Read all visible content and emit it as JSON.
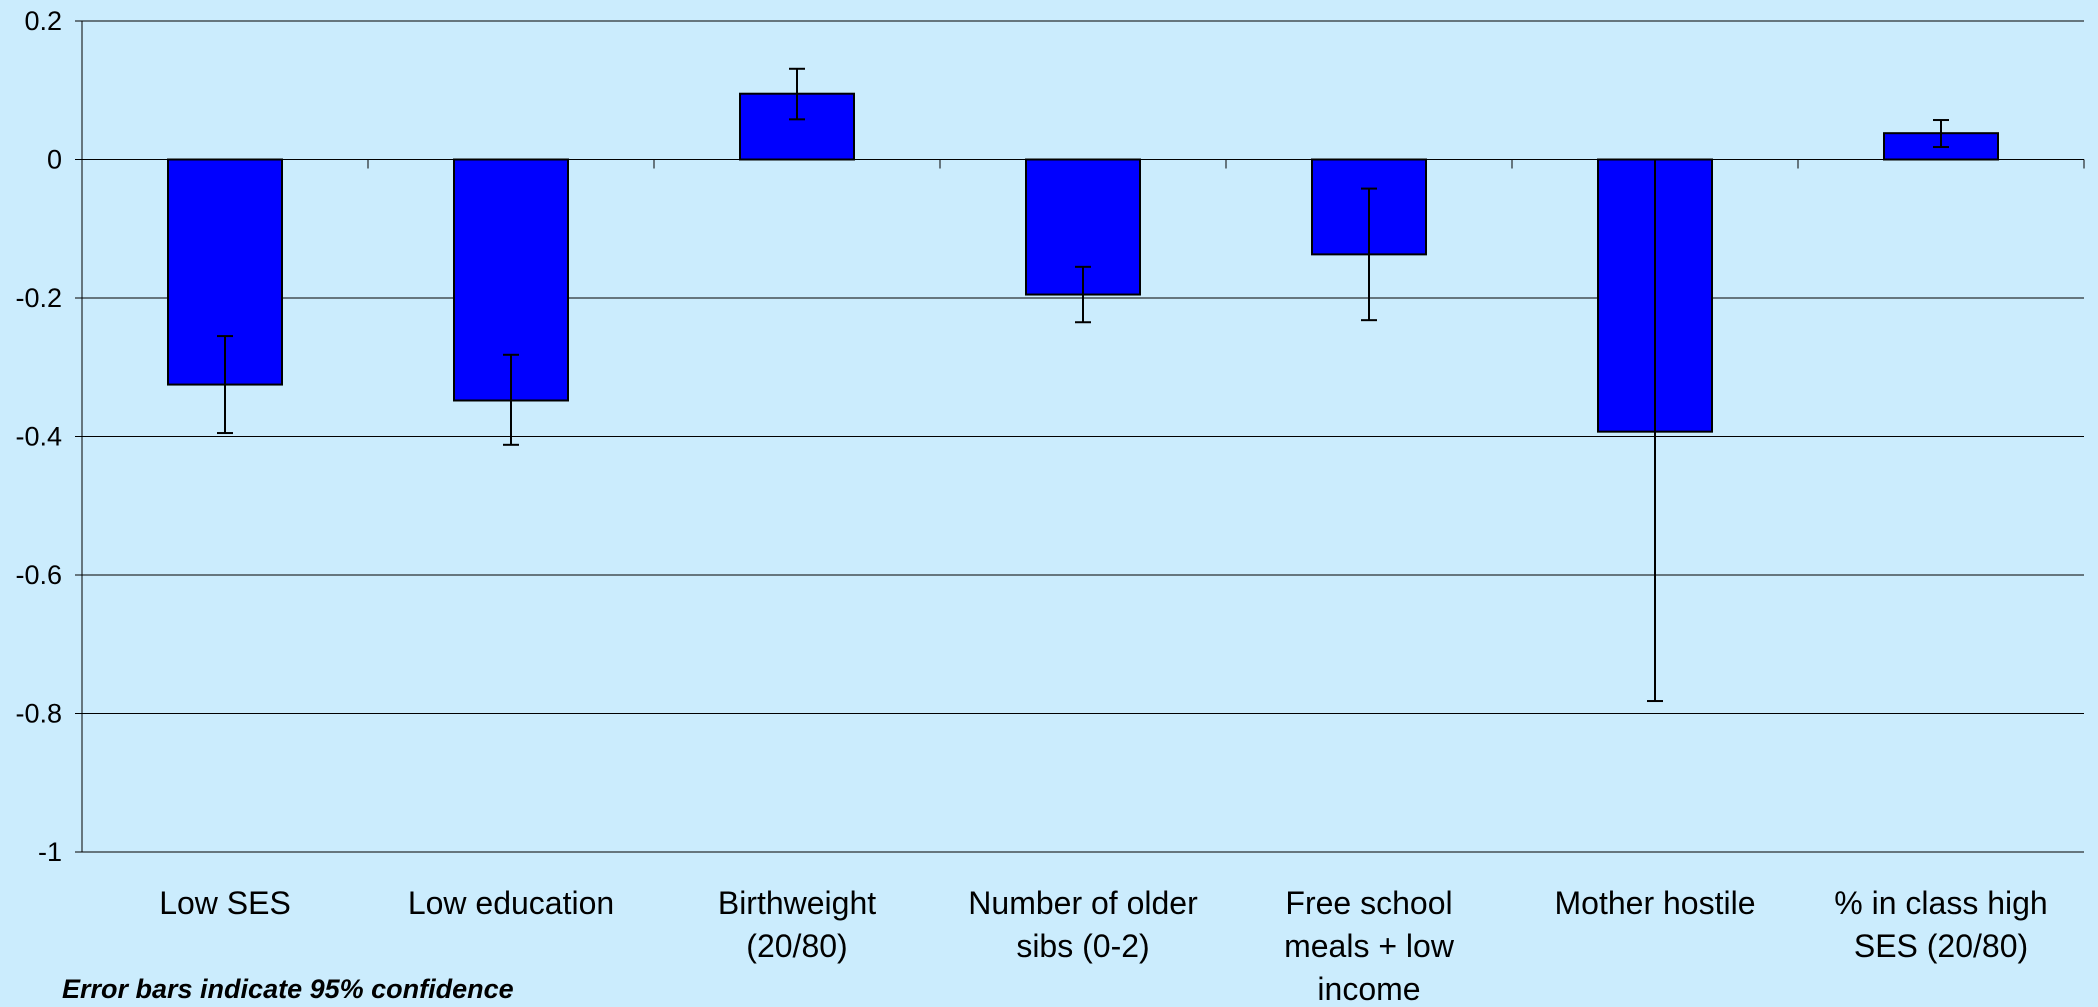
{
  "chart_data": {
    "type": "bar",
    "categories": [
      [
        "Low SES"
      ],
      [
        "Low education"
      ],
      [
        "Birthweight",
        "(20/80)"
      ],
      [
        "Number of older",
        "sibs (0-2)"
      ],
      [
        "Free school",
        "meals + low",
        "income"
      ],
      [
        "Mother hostile"
      ],
      [
        "% in class high",
        "SES (20/80)"
      ]
    ],
    "values": [
      -0.325,
      -0.348,
      0.095,
      -0.195,
      -0.137,
      -0.393,
      0.038
    ],
    "error_low": [
      -0.395,
      -0.412,
      0.058,
      -0.235,
      -0.232,
      -0.782,
      0.018
    ],
    "error_high": [
      -0.255,
      -0.282,
      0.131,
      -0.155,
      -0.042,
      0.0,
      0.057
    ],
    "ylim": [
      -1,
      0.2
    ],
    "yticks": [
      "0.2",
      "0",
      "-0.2",
      "-0.4",
      "-0.6",
      "-0.8",
      "-1"
    ],
    "ytick_values": [
      0.2,
      0,
      -0.2,
      -0.4,
      -0.6,
      -0.8,
      -1
    ],
    "grid": true,
    "bar_color": "#0000ff",
    "bar_edge_color": "#000000",
    "background_color": "#cbecfd",
    "gridline_color": "#000000"
  },
  "footnote": "Error bars indicate 95% confidence"
}
